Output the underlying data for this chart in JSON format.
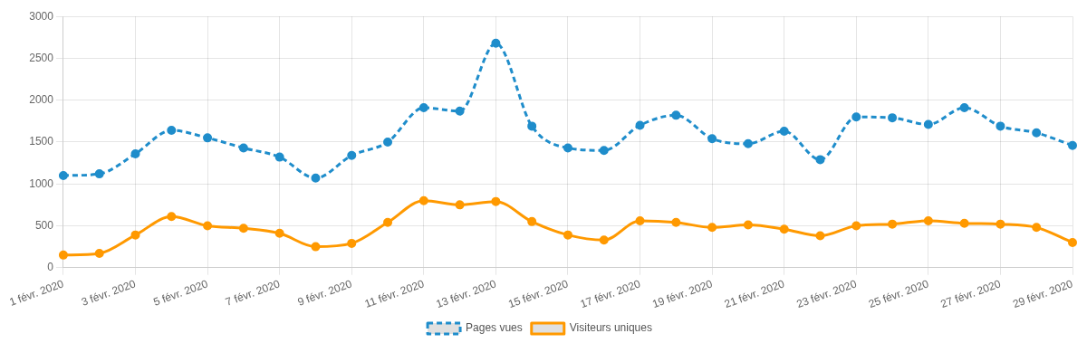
{
  "chart_data": {
    "type": "line",
    "categories": [
      "1 févr. 2020",
      null,
      "3 févr. 2020",
      null,
      "5 févr. 2020",
      null,
      "7 févr. 2020",
      null,
      "9 févr. 2020",
      null,
      "11 févr. 2020",
      null,
      "13 févr. 2020",
      null,
      "15 févr. 2020",
      null,
      "17 févr. 2020",
      null,
      "19 févr. 2020",
      null,
      "21 févr. 2020",
      null,
      "23 févr. 2020",
      null,
      "25 févr. 2020",
      null,
      "27 févr. 2020",
      null,
      "29 févr. 2020"
    ],
    "series": [
      {
        "name": "Pages vues",
        "color": "#1f8dcb",
        "line_style": "dashed",
        "values": [
          1100,
          1120,
          1360,
          1640,
          1550,
          1430,
          1320,
          1070,
          1340,
          1500,
          1910,
          1870,
          2680,
          1690,
          1430,
          1400,
          1700,
          1820,
          1540,
          1480,
          1630,
          1290,
          1800,
          1790,
          1710,
          1910,
          1690,
          1610,
          1460
        ]
      },
      {
        "name": "Visiteurs uniques",
        "color": "#ff9900",
        "line_style": "solid",
        "values": [
          150,
          170,
          390,
          610,
          500,
          470,
          410,
          250,
          290,
          540,
          800,
          750,
          790,
          550,
          390,
          330,
          560,
          540,
          480,
          510,
          460,
          380,
          500,
          520,
          560,
          530,
          520,
          480,
          300
        ]
      }
    ],
    "ylim": [
      0,
      3000
    ],
    "yticks": [
      0,
      500,
      1000,
      1500,
      2000,
      2500,
      3000
    ],
    "grid": true,
    "legend": "bottom",
    "marker": "circle"
  }
}
